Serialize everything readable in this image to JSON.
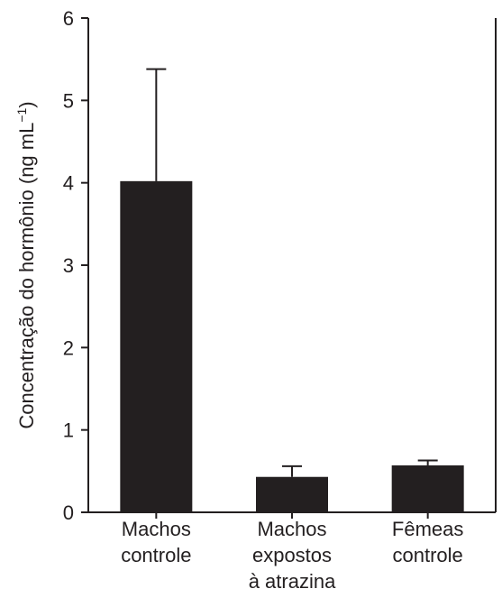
{
  "chart_data": {
    "type": "bar",
    "title": "",
    "xlabel": "",
    "ylabel": "Concentração do hormônio (ng mL",
    "ylabel_sup": "−1",
    "ylabel_close": ")",
    "ylim": [
      0,
      6
    ],
    "yticks": [
      "0",
      "1",
      "2",
      "3",
      "4",
      "5",
      "6"
    ],
    "categories": [
      [
        "Machos",
        "controle"
      ],
      [
        "Machos",
        "expostos",
        "à atrazina"
      ],
      [
        "Fêmeas",
        "controle"
      ]
    ],
    "values": [
      4.02,
      0.43,
      0.57
    ],
    "error_upper": [
      5.38,
      0.56,
      0.63
    ],
    "grid": false,
    "legend": "none",
    "colors": {
      "bar": "#231f20",
      "axis": "#231f20",
      "text": "#231f20"
    }
  }
}
